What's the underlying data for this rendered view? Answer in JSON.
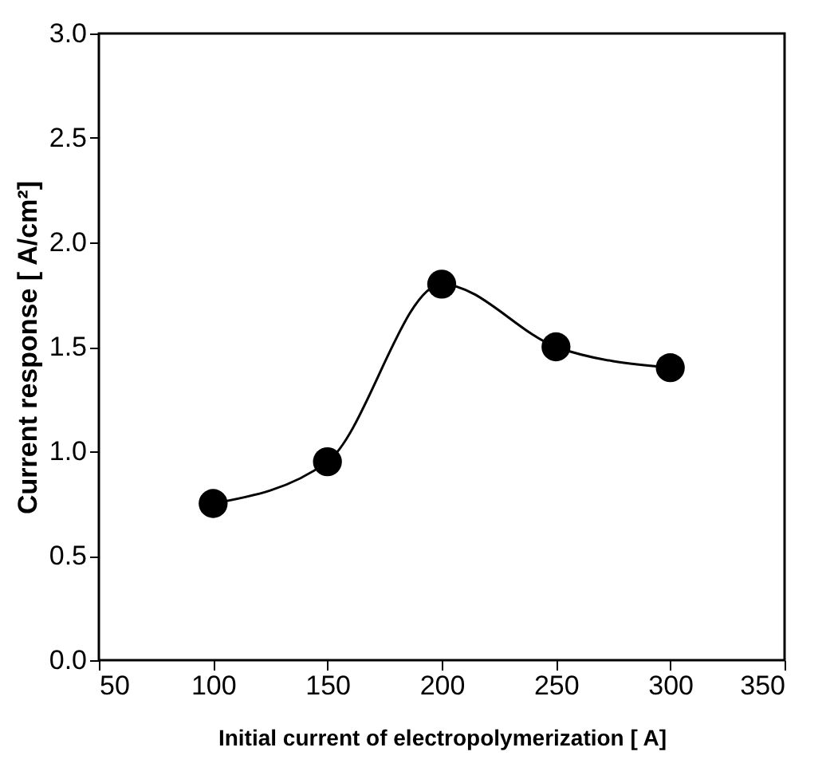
{
  "chart_data": {
    "type": "line",
    "xlabel": "Initial current of electropolymerization [   A]",
    "ylabel": "Current response [   A/cm²]",
    "x": [
      100,
      150,
      200,
      250,
      300
    ],
    "series": [
      {
        "color": "#000000",
        "values": [
          0.75,
          0.95,
          1.8,
          1.5,
          1.4
        ]
      }
    ],
    "xlim": [
      50,
      350
    ],
    "xticks": [
      50,
      100,
      150,
      200,
      250,
      300,
      350
    ],
    "ylim": [
      0,
      3
    ],
    "yticks": [
      {
        "value": 0,
        "label": "0.0"
      },
      0.5,
      {
        "value": 1,
        "label": "1.0"
      },
      1.5,
      {
        "value": 2,
        "label": "2.0"
      },
      2.5,
      {
        "value": 3,
        "label": "3.0"
      }
    ],
    "marker": "circle",
    "line_style": "solid",
    "grid": false
  }
}
